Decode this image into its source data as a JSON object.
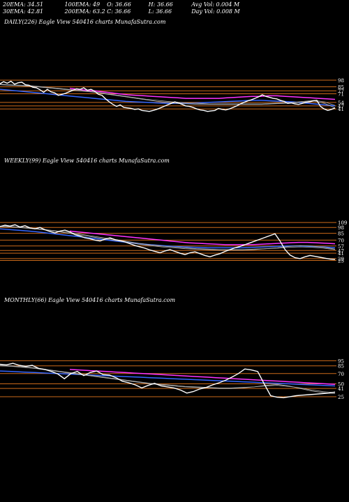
{
  "header": {
    "row1": [
      "20EMA: 34.51",
      "100EMA: 49",
      "O: 36.66",
      "H: 36.66",
      "Avg Vol: 0.004  M"
    ],
    "row2": [
      "30EMA: 42.81",
      "200EMA: 63.2",
      "C: 36.66",
      "L: 36.66",
      "Day Vol: 0.008  M"
    ]
  },
  "colors": {
    "background": "#000000",
    "price": "#ffffff",
    "level": "#cc6a1a",
    "magenta": "#ff33ff",
    "blue": "#3366ff",
    "ema": "#b0b0b0"
  },
  "chart_data": [
    {
      "type": "line",
      "title": "DAILY(226) Eagle  View  540416  charts MunafaSutra.com",
      "level_labels": [
        "98",
        "85",
        "77",
        "71",
        "54",
        "47",
        "41"
      ],
      "level_values": [
        98,
        85,
        77,
        71,
        54,
        47,
        41
      ],
      "y_range": [
        15,
        105
      ],
      "price": [
        91,
        95,
        92,
        96,
        90,
        93,
        94,
        89,
        88,
        84,
        83,
        79,
        74,
        80,
        75,
        73,
        68,
        70,
        72,
        75,
        78,
        81,
        80,
        83,
        78,
        80,
        76,
        70,
        68,
        61,
        55,
        50,
        46,
        49,
        44,
        43,
        42,
        40,
        41,
        38,
        37,
        36,
        38,
        40,
        43,
        46,
        49,
        52,
        55,
        53,
        50,
        47,
        46,
        44,
        41,
        39,
        38,
        36,
        37,
        38,
        42,
        40,
        39,
        41,
        44,
        47,
        51,
        54,
        57,
        59,
        62,
        65,
        69,
        66,
        64,
        62,
        61,
        58,
        56,
        52,
        53,
        51,
        50,
        52,
        54,
        55,
        57,
        58,
        46,
        41,
        38,
        40,
        43
      ],
      "ema_fast": [
        89,
        88,
        87,
        86,
        84,
        82,
        80,
        78,
        76,
        74,
        71,
        68,
        65,
        62,
        59,
        56,
        54,
        52,
        51,
        50,
        50,
        50,
        50,
        50,
        50,
        50,
        51,
        52,
        53,
        55,
        57,
        52,
        43
      ],
      "ema_slow": [
        90,
        89,
        88,
        87,
        85,
        83,
        81,
        79,
        77,
        75,
        72,
        69,
        66,
        63,
        60,
        58,
        56,
        54,
        53,
        52,
        51,
        51,
        51,
        51,
        51,
        51,
        52,
        53,
        54,
        56,
        58,
        55,
        48
      ],
      "blue_line": [
        80,
        78,
        76,
        74,
        72,
        70,
        68,
        66,
        64,
        62,
        60,
        58,
        56,
        55,
        54,
        53,
        52,
        52,
        52,
        53,
        54,
        55,
        56,
        57,
        58,
        58,
        57,
        56,
        55,
        53,
        51,
        49,
        47
      ],
      "magenta_line": [
        82,
        80,
        78,
        77,
        75,
        73,
        71,
        69,
        68,
        67,
        66,
        65,
        64,
        63,
        62,
        62,
        62,
        62,
        62,
        63,
        64,
        65,
        66,
        66,
        67,
        67,
        66,
        65,
        64,
        63,
        62,
        61,
        60
      ]
    },
    {
      "type": "line",
      "title": "WEEKLY(99) Eagle  View  540416  charts MunafaSutra.com",
      "level_labels": [
        "109",
        "98",
        "85",
        "70",
        "57",
        "47",
        "41",
        "29",
        "25"
      ],
      "level_values": [
        109,
        98,
        85,
        70,
        57,
        47,
        41,
        29,
        25
      ],
      "y_range": [
        15,
        120
      ],
      "price": [
        100,
        103,
        101,
        104,
        99,
        102,
        97,
        95,
        98,
        93,
        89,
        86,
        90,
        92,
        88,
        82,
        79,
        75,
        73,
        70,
        68,
        72,
        75,
        71,
        69,
        66,
        62,
        58,
        55,
        52,
        48,
        45,
        42,
        46,
        49,
        45,
        41,
        38,
        42,
        44,
        40,
        36,
        33,
        37,
        40,
        45,
        49,
        53,
        56,
        60,
        64,
        68,
        72,
        76,
        80,
        84,
        68,
        49,
        37,
        31,
        29,
        33,
        36,
        34,
        32,
        30,
        28,
        27
      ],
      "ema_fast": [
        100,
        99,
        97,
        95,
        92,
        89,
        85,
        81,
        77,
        73,
        69,
        65,
        61,
        58,
        55,
        53,
        51,
        50,
        49,
        48,
        48,
        48,
        49,
        51,
        53,
        56,
        58,
        57,
        54,
        50
      ],
      "ema_slow": [
        101,
        100,
        98,
        96,
        93,
        90,
        87,
        83,
        79,
        75,
        71,
        67,
        63,
        60,
        57,
        55,
        53,
        51,
        50,
        49,
        49,
        49,
        50,
        51,
        52,
        54,
        55,
        54,
        52,
        49
      ],
      "blue_line": [
        95,
        93,
        91,
        89,
        86,
        83,
        80,
        77,
        74,
        71,
        68,
        65,
        62,
        60,
        58,
        56,
        55,
        54,
        53,
        53,
        53,
        53,
        54,
        55,
        56,
        57,
        57,
        56,
        55,
        53
      ],
      "magenta_line": [
        90,
        88,
        86,
        84,
        82,
        80,
        78,
        76,
        74,
        72,
        70,
        68,
        66,
        64,
        63,
        62,
        61,
        60,
        60,
        60,
        60,
        61,
        62,
        63,
        64,
        65,
        65,
        64,
        63,
        62
      ]
    },
    {
      "type": "line",
      "title": "MONTHLY(66) Eagle  View  540416  charts MunafaSutra.com",
      "level_labels": [
        "95",
        "85",
        "70",
        "50",
        "41",
        "25"
      ],
      "level_values": [
        95,
        85,
        70,
        50,
        41,
        25
      ],
      "y_range": [
        10,
        105
      ],
      "price": [
        88,
        87,
        90,
        86,
        84,
        86,
        80,
        78,
        74,
        69,
        60,
        70,
        74,
        66,
        72,
        75,
        68,
        67,
        62,
        55,
        52,
        48,
        42,
        47,
        51,
        46,
        44,
        42,
        38,
        32,
        35,
        40,
        43,
        48,
        52,
        57,
        63,
        70,
        79,
        77,
        74,
        50,
        27,
        24,
        23,
        25,
        27,
        28,
        29,
        30,
        31,
        32,
        34
      ],
      "ema_fast": [
        85,
        84,
        82,
        80,
        77,
        74,
        71,
        68,
        65,
        62,
        59,
        56,
        53,
        50,
        48,
        46,
        44,
        43,
        42,
        41,
        41,
        42,
        44,
        47,
        49,
        46,
        41,
        36,
        33,
        31
      ],
      "ema_slow": [
        86,
        85,
        83,
        81,
        78,
        75,
        72,
        69,
        66,
        63,
        60,
        57,
        54,
        51,
        49,
        47,
        45,
        44,
        43,
        42,
        42,
        43,
        44,
        46,
        47,
        45,
        42,
        38,
        35,
        33
      ],
      "blue_line": [
        75,
        74,
        73,
        72,
        71,
        70,
        69,
        68,
        67,
        66,
        65,
        64,
        63,
        62,
        61,
        60,
        59,
        58,
        57,
        56,
        55,
        54,
        53,
        52,
        51,
        50,
        49,
        48,
        47,
        46
      ],
      "magenta_line": [
        78,
        77,
        76,
        75,
        74,
        73,
        72,
        71,
        70,
        69,
        68,
        67,
        66,
        65,
        64,
        63,
        62,
        61,
        60,
        59,
        58,
        57,
        56,
        55,
        54,
        53,
        52,
        51,
        50,
        49
      ]
    }
  ]
}
